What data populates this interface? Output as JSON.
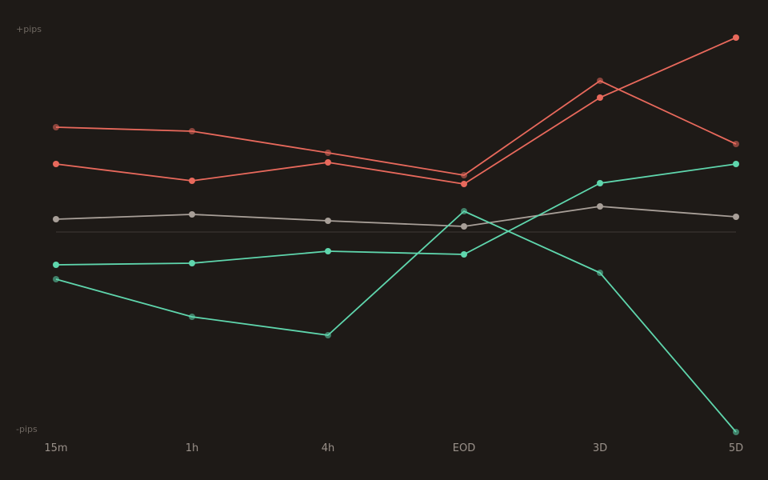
{
  "chart_data": {
    "type": "line",
    "categories": [
      "15m",
      "1h",
      "4h",
      "EOD",
      "3D",
      "5D"
    ],
    "y_top_label": "+pips",
    "y_bottom_label": "-pips",
    "ylim": [
      -100,
      100
    ],
    "zero_line": true,
    "grid": false,
    "legend": "none",
    "colors": {
      "background": "#1e1a17",
      "positive": "#e8695c",
      "negative": "#5fd6ad",
      "neutral": "#a89f98",
      "zero_line": "#3a3430",
      "tick_text": "#9a918a"
    },
    "series": [
      {
        "values": [
          52.4,
          50.4,
          39.6,
          28.4,
          75.6,
          44.0
        ],
        "color": "positive",
        "marker": "dim"
      },
      {
        "values": [
          34.0,
          25.6,
          34.8,
          24.0,
          67.2,
          97.2
        ],
        "color": "positive",
        "marker": "bright"
      },
      {
        "values": [
          6.4,
          8.8,
          5.6,
          2.8,
          12.8,
          7.6
        ],
        "color": "neutral",
        "marker": "bright"
      },
      {
        "values": [
          -16.4,
          -15.6,
          -9.6,
          -11.2,
          24.4,
          34.0
        ],
        "color": "negative",
        "marker": "bright"
      },
      {
        "values": [
          -23.6,
          -42.4,
          -51.6,
          10.4,
          -20.4,
          -100.0
        ],
        "color": "negative",
        "marker": "dim"
      }
    ]
  }
}
